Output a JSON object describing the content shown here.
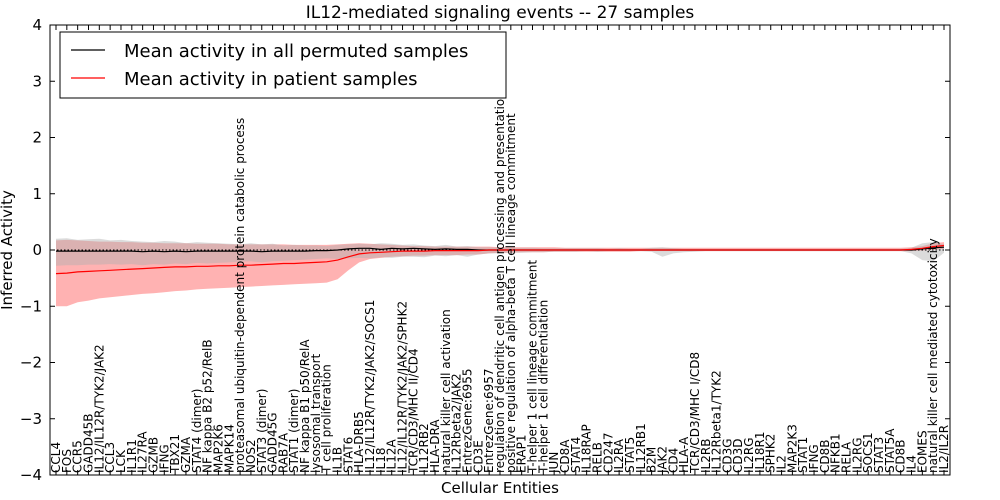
{
  "chart_data": {
    "type": "line",
    "title": "IL12-mediated signaling events -- 27 samples",
    "xlabel": "Cellular Entities",
    "ylabel": "Inferred Activity",
    "ylim": [
      -4,
      4
    ],
    "yticks": [
      -4,
      -3,
      -2,
      -1,
      0,
      1,
      2,
      3,
      4
    ],
    "legend_position": "top-left",
    "colors": {
      "permuted": "#000000",
      "patient": "#ff0000",
      "patient_band": "#ff0000",
      "permuted_band": "#b0b0b0"
    },
    "categories": [
      "CCL4",
      "FOS",
      "CCR5",
      "GADD45B",
      "IL12/IL12R/TYK2/JAK2",
      "CCL3",
      "LCK",
      "IL1R1",
      "IL27RA",
      "GZMB",
      "IFNG",
      "TBX21",
      "GZMA",
      "STAT4 (dimer)",
      "NF kappa B2 p52/RelB",
      "MAP2K6",
      "MAPK14",
      "proteasomal ubiquitin-dependent protein catabolic process",
      "NOS2",
      "STAT3 (dimer)",
      "GADD45G",
      "RAB7A",
      "STAT1 (dimer)",
      "NF kappa B1 p50/RelA",
      "lysosomal transport",
      "T cell proliferation",
      "IL1B",
      "STAT6",
      "HLA-DRB5",
      "IL12/IL12R/TYK2/JAK2/SOCS1",
      "IL18",
      "IL12A",
      "IL12/IL12R/TYK2/JAK2/SPHK2",
      "TCR/CD3/MHC II/CD4",
      "IL12RB2",
      "HLA-DRA",
      "natural killer cell activation",
      "IL12Rbeta2/JAK2",
      "EntrezGene:6955",
      "CD3E",
      "EntrezGene:6957",
      "regulation of dendritic cell antigen processing and presentation",
      "positive regulation of alpha-beta T cell lineage commitment",
      "ERAP1",
      "T-helper 1 cell lineage commitment",
      "T-helper 1 cell differentiation",
      "JUN",
      "CD8A",
      "STAT4",
      "IL18RAP",
      "RELB",
      "CD247",
      "IL2RA",
      "STAT5",
      "IL12RB1",
      "B2M",
      "JAK2",
      "CD4",
      "HLA-A",
      "TCR/CD3/MHC I/CD8",
      "IL2RB",
      "IL12Rbeta1/TYK2",
      "CD3G",
      "CD3D",
      "IL2RG",
      "IL18R1",
      "SPHK2",
      "IL2",
      "MAP2K3",
      "STAT1",
      "IFNG",
      "CD8B",
      "NFKB1",
      "RELA",
      "IL2RG",
      "SOCS1",
      "STAT3",
      "STAT5A",
      "CD8B",
      "IL4",
      "EOMES",
      "natural killer cell mediated cytotoxicity",
      "IL2/IL2R"
    ],
    "series": [
      {
        "name": "Mean activity in all permuted samples",
        "values": [
          -0.02,
          -0.02,
          -0.02,
          -0.02,
          -0.02,
          -0.02,
          -0.02,
          -0.02,
          -0.03,
          -0.02,
          -0.03,
          -0.02,
          -0.03,
          -0.02,
          -0.02,
          -0.02,
          -0.02,
          -0.02,
          -0.02,
          -0.03,
          -0.02,
          -0.02,
          -0.02,
          -0.02,
          -0.01,
          -0.01,
          0.0,
          0.02,
          0.03,
          0.03,
          0.01,
          0.03,
          0.02,
          0.03,
          0.02,
          0.01,
          0.02,
          0.01,
          0.01,
          0.0,
          0.0,
          0.0,
          0.0,
          0.0,
          0.0,
          0.0,
          0.0,
          0.0,
          0.0,
          0.0,
          0.0,
          0.0,
          0.0,
          0.0,
          0.0,
          0.0,
          0.0,
          0.0,
          0.0,
          0.0,
          0.0,
          0.0,
          0.0,
          0.0,
          0.0,
          0.0,
          0.0,
          0.0,
          0.0,
          0.0,
          0.0,
          0.0,
          0.0,
          0.0,
          0.0,
          0.0,
          0.0,
          0.0,
          0.0,
          0.0,
          0.02,
          0.04,
          0.05
        ]
      },
      {
        "name": "Mean activity in patient samples",
        "values": [
          -0.42,
          -0.41,
          -0.39,
          -0.38,
          -0.37,
          -0.36,
          -0.35,
          -0.34,
          -0.33,
          -0.32,
          -0.31,
          -0.3,
          -0.3,
          -0.29,
          -0.29,
          -0.28,
          -0.28,
          -0.27,
          -0.27,
          -0.26,
          -0.25,
          -0.24,
          -0.24,
          -0.23,
          -0.22,
          -0.21,
          -0.18,
          -0.12,
          -0.07,
          -0.05,
          -0.04,
          -0.03,
          -0.02,
          -0.02,
          -0.02,
          -0.01,
          -0.01,
          -0.01,
          -0.01,
          -0.01,
          0.0,
          0.0,
          0.0,
          0.0,
          0.0,
          0.0,
          0.0,
          0.0,
          0.0,
          0.0,
          0.0,
          0.0,
          0.0,
          0.0,
          0.0,
          0.0,
          0.0,
          0.0,
          0.0,
          0.0,
          0.0,
          0.0,
          0.0,
          0.0,
          0.0,
          0.0,
          0.0,
          0.0,
          0.0,
          0.0,
          0.0,
          0.0,
          0.0,
          0.0,
          0.0,
          0.0,
          0.0,
          0.0,
          0.0,
          0.01,
          0.03,
          0.06,
          0.08
        ]
      }
    ],
    "bands": [
      {
        "name": "permuted samples range",
        "lower": [
          -0.28,
          -0.27,
          -0.27,
          -0.26,
          -0.26,
          -0.25,
          -0.26,
          -0.25,
          -0.27,
          -0.25,
          -0.26,
          -0.24,
          -0.25,
          -0.23,
          -0.24,
          -0.23,
          -0.22,
          -0.21,
          -0.2,
          -0.22,
          -0.2,
          -0.19,
          -0.18,
          -0.17,
          -0.16,
          -0.15,
          -0.16,
          -0.15,
          -0.14,
          -0.15,
          -0.13,
          -0.14,
          -0.12,
          -0.12,
          -0.13,
          -0.1,
          -0.11,
          -0.09,
          -0.12,
          -0.08,
          -0.06,
          -0.06,
          -0.05,
          -0.05,
          -0.04,
          -0.04,
          -0.03,
          -0.03,
          -0.03,
          -0.02,
          -0.03,
          -0.02,
          -0.02,
          -0.02,
          -0.02,
          -0.03,
          -0.12,
          -0.06,
          -0.04,
          -0.03,
          -0.02,
          -0.02,
          -0.02,
          -0.02,
          -0.02,
          -0.02,
          -0.02,
          -0.02,
          -0.02,
          -0.02,
          -0.02,
          -0.02,
          -0.02,
          -0.02,
          -0.02,
          -0.02,
          -0.02,
          -0.02,
          -0.02,
          -0.06,
          -0.18,
          -0.2,
          -0.05
        ],
        "upper": [
          0.2,
          0.21,
          0.18,
          0.19,
          0.2,
          0.17,
          0.18,
          0.16,
          0.15,
          0.14,
          0.16,
          0.15,
          0.12,
          0.14,
          0.13,
          0.12,
          0.11,
          0.1,
          0.12,
          0.1,
          0.11,
          0.08,
          0.09,
          0.08,
          0.08,
          0.07,
          0.09,
          0.1,
          0.11,
          0.1,
          0.12,
          0.11,
          0.09,
          0.1,
          0.08,
          0.07,
          0.09,
          0.06,
          0.07,
          0.05,
          0.05,
          0.04,
          0.04,
          0.04,
          0.04,
          0.03,
          0.03,
          0.03,
          0.03,
          0.03,
          0.03,
          0.02,
          0.03,
          0.02,
          0.02,
          0.04,
          0.05,
          0.03,
          0.02,
          0.02,
          0.02,
          0.02,
          0.02,
          0.02,
          0.02,
          0.02,
          0.02,
          0.02,
          0.02,
          0.02,
          0.02,
          0.02,
          0.02,
          0.02,
          0.02,
          0.02,
          0.02,
          0.02,
          0.02,
          0.04,
          0.12,
          0.14,
          0.1
        ]
      },
      {
        "name": "patient samples range",
        "lower": [
          -1.0,
          -1.0,
          -0.93,
          -0.9,
          -0.86,
          -0.84,
          -0.82,
          -0.8,
          -0.78,
          -0.77,
          -0.75,
          -0.73,
          -0.72,
          -0.7,
          -0.69,
          -0.68,
          -0.67,
          -0.66,
          -0.65,
          -0.64,
          -0.63,
          -0.62,
          -0.61,
          -0.6,
          -0.59,
          -0.58,
          -0.52,
          -0.36,
          -0.22,
          -0.16,
          -0.14,
          -0.12,
          -0.11,
          -0.1,
          -0.1,
          -0.09,
          -0.09,
          -0.09,
          -0.08,
          -0.08,
          -0.06,
          -0.05,
          -0.05,
          -0.04,
          -0.04,
          -0.04,
          -0.03,
          -0.03,
          -0.03,
          -0.03,
          -0.03,
          -0.03,
          -0.03,
          -0.03,
          -0.02,
          -0.02,
          -0.02,
          -0.02,
          -0.02,
          -0.02,
          -0.02,
          -0.02,
          -0.02,
          -0.02,
          -0.02,
          -0.02,
          -0.02,
          -0.02,
          -0.02,
          -0.02,
          -0.02,
          -0.02,
          -0.02,
          -0.02,
          -0.02,
          -0.02,
          -0.02,
          -0.02,
          -0.02,
          -0.02,
          -0.01,
          0.0,
          0.02
        ],
        "upper": [
          0.17,
          0.18,
          0.17,
          0.16,
          0.15,
          0.15,
          0.14,
          0.14,
          0.13,
          0.13,
          0.12,
          0.12,
          0.12,
          0.11,
          0.11,
          0.11,
          0.1,
          0.1,
          0.1,
          0.1,
          0.1,
          0.1,
          0.09,
          0.09,
          0.09,
          0.09,
          0.1,
          0.11,
          0.12,
          0.11,
          0.1,
          0.09,
          0.08,
          0.07,
          0.07,
          0.06,
          0.06,
          0.06,
          0.06,
          0.06,
          0.06,
          0.05,
          0.05,
          0.05,
          0.05,
          0.05,
          0.05,
          0.04,
          0.04,
          0.04,
          0.04,
          0.04,
          0.04,
          0.04,
          0.04,
          0.04,
          0.04,
          0.04,
          0.04,
          0.04,
          0.04,
          0.04,
          0.04,
          0.04,
          0.04,
          0.04,
          0.04,
          0.04,
          0.04,
          0.04,
          0.04,
          0.04,
          0.04,
          0.04,
          0.04,
          0.04,
          0.04,
          0.04,
          0.04,
          0.05,
          0.07,
          0.12,
          0.14
        ]
      }
    ]
  }
}
